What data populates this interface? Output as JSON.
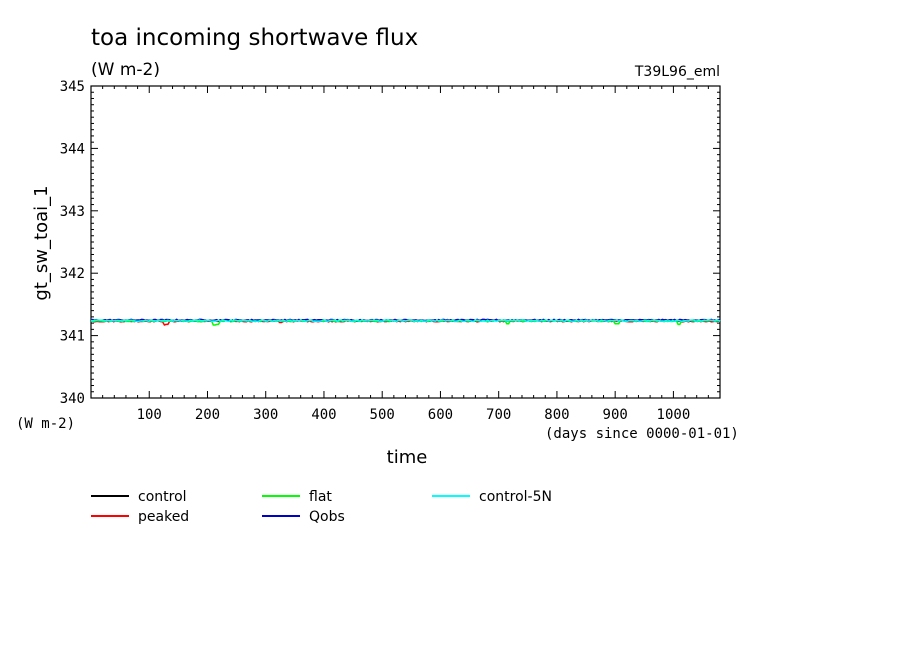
{
  "header": {
    "title": "toa incoming shortwave flux",
    "units": "(W m-2)",
    "experiment": "T39L96_eml"
  },
  "chart_data": {
    "type": "line",
    "xlabel": "time",
    "xunits": "(days since 0000-01-01)",
    "ylabel": "gt_sw_toai_1",
    "yunits": "(W m-2)",
    "xlim": [
      0,
      1080
    ],
    "ylim": [
      340,
      345
    ],
    "xticks": [
      100,
      200,
      300,
      400,
      500,
      600,
      700,
      800,
      900,
      1000
    ],
    "yticks": [
      340,
      341,
      342,
      343,
      344,
      345
    ],
    "grid": false,
    "legend_position": "bottom",
    "series": [
      {
        "name": "control",
        "color": "#000000",
        "base": 341.24
      },
      {
        "name": "peaked",
        "color": "#ff0000",
        "base": 341.23,
        "dips": [
          [
            128,
            341.17
          ],
          [
            131,
            341.18
          ],
          [
            326,
            341.21
          ]
        ]
      },
      {
        "name": "flat",
        "color": "#00ff00",
        "base": 341.235,
        "dips": [
          [
            212,
            341.17
          ],
          [
            218,
            341.18
          ],
          [
            715,
            341.19
          ],
          [
            903,
            341.19
          ],
          [
            1010,
            341.18
          ]
        ]
      },
      {
        "name": "Qobs",
        "color": "#0000cc",
        "base": 341.25
      },
      {
        "name": "control-5N",
        "color": "#00ffff",
        "base": 341.24
      }
    ]
  }
}
